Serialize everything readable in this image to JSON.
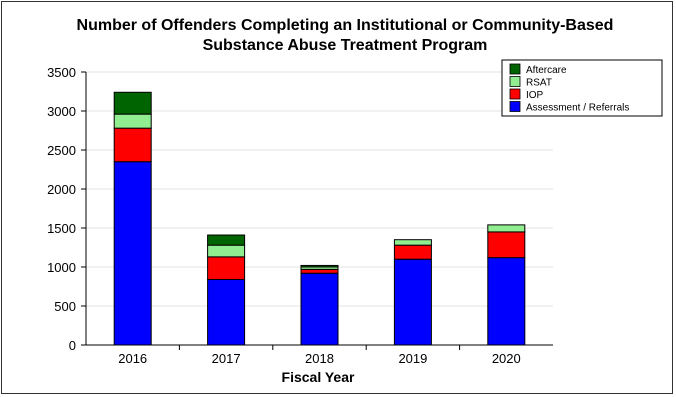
{
  "chart_data": {
    "type": "bar",
    "stacked": true,
    "title_lines": [
      "Number of Offenders Completing an Institutional or Community-Based",
      "Substance Abuse Treatment Program"
    ],
    "xlabel": "Fiscal Year",
    "ylabel": "",
    "categories": [
      "2016",
      "2017",
      "2018",
      "2019",
      "2020"
    ],
    "ylim": [
      0,
      3500
    ],
    "yticks": [
      "0",
      "500",
      "1000",
      "1500",
      "2000",
      "2500",
      "3000",
      "3500"
    ],
    "grid": true,
    "legend_position": "top-right",
    "series": [
      {
        "name": "Assessment / Referrals",
        "color": "#0000ff",
        "values": [
          2350,
          840,
          920,
          1100,
          1120
        ]
      },
      {
        "name": "IOP",
        "color": "#ff0000",
        "values": [
          430,
          290,
          50,
          180,
          330
        ]
      },
      {
        "name": "RSAT",
        "color": "#90ee90",
        "values": [
          180,
          150,
          30,
          70,
          90
        ]
      },
      {
        "name": "Aftercare",
        "color": "#006400",
        "values": [
          280,
          130,
          20,
          0,
          0
        ]
      }
    ]
  }
}
